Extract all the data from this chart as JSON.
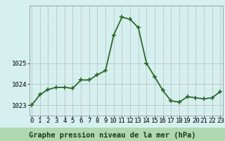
{
  "hours": [
    0,
    1,
    2,
    3,
    4,
    5,
    6,
    7,
    8,
    9,
    10,
    11,
    12,
    13,
    14,
    15,
    16,
    17,
    18,
    19,
    20,
    21,
    22,
    23
  ],
  "pressure": [
    1023.0,
    1023.5,
    1023.75,
    1023.85,
    1023.85,
    1023.8,
    1024.2,
    1024.2,
    1024.45,
    1024.65,
    1026.35,
    1027.2,
    1027.1,
    1026.7,
    1025.0,
    1024.35,
    1023.7,
    1023.2,
    1023.15,
    1023.4,
    1023.35,
    1023.3,
    1023.35,
    1023.65
  ],
  "line_color": "#2d6a2d",
  "marker_color": "#2d6a2d",
  "bg_color": "#d6f0f0",
  "label_bg_color": "#b0d8b0",
  "grid_color_major": "#b8b8b8",
  "grid_color_minor": "#d0e8e8",
  "xlabel": "Graphe pression niveau de la mer (hPa)",
  "yticks": [
    1023,
    1024,
    1025
  ],
  "ylim": [
    1022.5,
    1027.75
  ],
  "xlim": [
    -0.3,
    23.3
  ],
  "xlabel_fontsize": 7.5,
  "tick_fontsize": 6.5,
  "line_width": 1.3,
  "marker_size": 4
}
